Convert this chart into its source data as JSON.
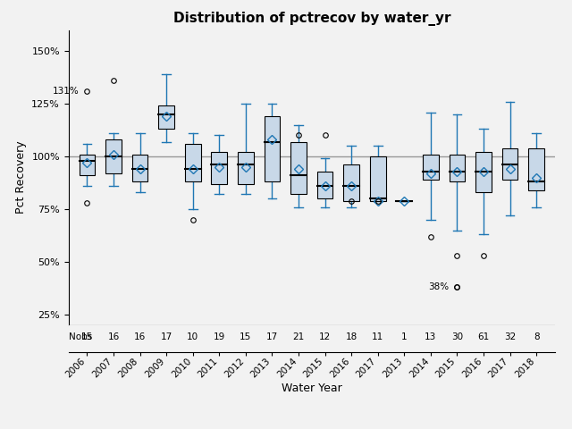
{
  "title": "Distribution of pctrecov by water_yr",
  "xlabel": "Water Year",
  "ylabel": "Pct Recovery",
  "nobs_label": "Nobs",
  "ref_line": 100,
  "ylim": [
    20,
    160
  ],
  "yticks": [
    25,
    50,
    75,
    100,
    125,
    150
  ],
  "ytick_labels": [
    "25%",
    "50%",
    "75%",
    "100%",
    "125%",
    "150%"
  ],
  "year_labels": [
    "2006",
    "2007",
    "2008",
    "2009",
    "2010",
    "2011",
    "2012",
    "2013",
    "2014",
    "2015",
    "2016",
    "2017",
    "2013",
    "2014",
    "2015",
    "2016",
    "2017",
    "2018"
  ],
  "nobs": [
    15,
    16,
    16,
    17,
    10,
    19,
    15,
    17,
    21,
    12,
    18,
    11,
    1,
    13,
    30,
    61,
    32,
    8
  ],
  "box_data": [
    {
      "q1": 91,
      "median": 98,
      "q3": 101,
      "whislo": 86,
      "whishi": 106,
      "mean": 97,
      "fliers": [
        78,
        131
      ]
    },
    {
      "q1": 92,
      "median": 100,
      "q3": 108,
      "whislo": 86,
      "whishi": 111,
      "mean": 101,
      "fliers": [
        136
      ]
    },
    {
      "q1": 88,
      "median": 94,
      "q3": 101,
      "whislo": 83,
      "whishi": 111,
      "mean": 94,
      "fliers": []
    },
    {
      "q1": 113,
      "median": 120,
      "q3": 124,
      "whislo": 107,
      "whishi": 139,
      "mean": 119,
      "fliers": []
    },
    {
      "q1": 88,
      "median": 94,
      "q3": 106,
      "whislo": 75,
      "whishi": 111,
      "mean": 94,
      "fliers": [
        70
      ]
    },
    {
      "q1": 87,
      "median": 96,
      "q3": 102,
      "whislo": 82,
      "whishi": 110,
      "mean": 95,
      "fliers": []
    },
    {
      "q1": 87,
      "median": 96,
      "q3": 102,
      "whislo": 82,
      "whishi": 125,
      "mean": 95,
      "fliers": []
    },
    {
      "q1": 88,
      "median": 107,
      "q3": 119,
      "whislo": 80,
      "whishi": 125,
      "mean": 108,
      "fliers": []
    },
    {
      "q1": 82,
      "median": 91,
      "q3": 107,
      "whislo": 76,
      "whishi": 115,
      "mean": 94,
      "fliers": [
        110
      ]
    },
    {
      "q1": 80,
      "median": 86,
      "q3": 93,
      "whislo": 76,
      "whishi": 99,
      "mean": 86,
      "fliers": [
        110
      ]
    },
    {
      "q1": 79,
      "median": 86,
      "q3": 96,
      "whislo": 76,
      "whishi": 105,
      "mean": 86,
      "fliers": [
        79
      ]
    },
    {
      "q1": 79,
      "median": 80,
      "q3": 100,
      "whislo": 79,
      "whishi": 105,
      "mean": 79,
      "fliers": [
        79
      ]
    },
    {
      "q1": 79,
      "median": 79,
      "q3": 79,
      "whislo": 79,
      "whishi": 79,
      "mean": 79,
      "fliers": []
    },
    {
      "q1": 89,
      "median": 93,
      "q3": 101,
      "whislo": 70,
      "whishi": 121,
      "mean": 92,
      "fliers": [
        62
      ]
    },
    {
      "q1": 88,
      "median": 93,
      "q3": 101,
      "whislo": 65,
      "whishi": 120,
      "mean": 93,
      "fliers": [
        38,
        38,
        53
      ]
    },
    {
      "q1": 83,
      "median": 93,
      "q3": 102,
      "whislo": 63,
      "whishi": 113,
      "mean": 93,
      "fliers": [
        53
      ]
    },
    {
      "q1": 89,
      "median": 96,
      "q3": 104,
      "whislo": 72,
      "whishi": 126,
      "mean": 94,
      "fliers": []
    },
    {
      "q1": 84,
      "median": 88,
      "q3": 104,
      "whislo": 76,
      "whishi": 111,
      "mean": 90,
      "fliers": []
    }
  ],
  "box_color": "#c8d8e8",
  "box_edge_color": "#000000",
  "median_color": "#000000",
  "whisker_color": "#1f77b4",
  "cap_color": "#1f77b4",
  "flier_color": "#000000",
  "mean_color": "#1f77b4",
  "mean_marker": "D",
  "ref_line_color": "#999999",
  "background_color": "#f2f2f2"
}
